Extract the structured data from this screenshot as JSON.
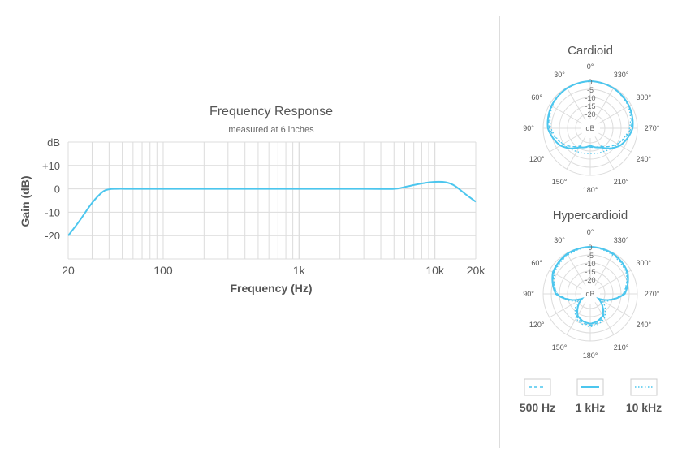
{
  "colors": {
    "accent": "#4cc6ee",
    "grid": "#dcdcdc",
    "text": "#555555"
  },
  "chart_data": [
    {
      "type": "line",
      "title": "Frequency Response",
      "subtitle": "measured at 6 inches",
      "xlabel": "Frequency (Hz)",
      "ylabel": "Gain (dB)",
      "x_scale": "log",
      "xlim": [
        20,
        20000
      ],
      "ylim": [
        -30,
        20
      ],
      "x_tick_labels": [
        "20",
        "100",
        "1k",
        "10k",
        "20k"
      ],
      "x_tick_values": [
        20,
        100,
        1000,
        10000,
        20000
      ],
      "y_tick_labels": [
        "dB",
        "+10",
        "0",
        "-10",
        "-20"
      ],
      "y_tick_values": [
        20,
        10,
        0,
        -10,
        -20
      ],
      "grid": true,
      "series": [
        {
          "x": [
            20,
            24,
            30,
            36,
            40,
            45,
            60,
            100,
            500,
            1000,
            3000,
            5000,
            6000,
            8000,
            10000,
            12000,
            14000,
            17000,
            20000
          ],
          "y": [
            -20,
            -14,
            -6,
            -1.2,
            -0.2,
            0,
            0,
            0,
            0,
            0,
            0,
            0,
            0.8,
            2.3,
            3,
            2.8,
            1.3,
            -2.5,
            -5.5
          ]
        }
      ]
    },
    {
      "type": "polar",
      "title": "Cardioid",
      "radial_tick_labels": [
        "0",
        "-5",
        "-10",
        "-15",
        "-20"
      ],
      "radial_unit": "dB",
      "angle_labels": [
        "0°",
        "30°",
        "60°",
        "90°",
        "120°",
        "150°",
        "180°",
        "210°",
        "240°",
        "270°",
        "300°",
        "330°"
      ],
      "series": [
        {
          "name": "500 Hz",
          "angle_deg": [
            0,
            30,
            60,
            90,
            120,
            150,
            180,
            210,
            240,
            270,
            300,
            330
          ],
          "db": [
            0,
            -0.5,
            -1.5,
            -4,
            -10,
            -17,
            -18,
            -17,
            -10,
            -4,
            -1.5,
            -0.5
          ]
        },
        {
          "name": "1 kHz",
          "angle_deg": [
            0,
            30,
            60,
            90,
            120,
            150,
            180,
            210,
            240,
            270,
            300,
            330
          ],
          "db": [
            0,
            -0.5,
            -1.5,
            -3,
            -8,
            -16,
            -19,
            -16,
            -8,
            -3,
            -1.5,
            -0.5
          ]
        },
        {
          "name": "10 kHz",
          "angle_deg": [
            0,
            30,
            60,
            90,
            120,
            150,
            180,
            210,
            240,
            270,
            300,
            330
          ],
          "db": [
            0,
            -0.7,
            -2,
            -5,
            -10,
            -13,
            -14,
            -13,
            -10,
            -5,
            -2,
            -0.7
          ]
        }
      ]
    },
    {
      "type": "polar",
      "title": "Hypercardioid",
      "radial_tick_labels": [
        "0",
        "-5",
        "-10",
        "-15",
        "-20"
      ],
      "radial_unit": "dB",
      "angle_labels": [
        "0°",
        "30°",
        "60°",
        "90°",
        "120°",
        "150°",
        "180°",
        "210°",
        "240°",
        "270°",
        "300°",
        "330°"
      ],
      "series": [
        {
          "name": "500 Hz",
          "angle_deg": [
            0,
            30,
            60,
            90,
            120,
            150,
            165,
            180,
            195,
            210,
            240,
            270,
            300,
            330
          ],
          "db": [
            0,
            -1,
            -3,
            -9,
            -24,
            -13,
            -11,
            -10,
            -11,
            -13,
            -24,
            -9,
            -3,
            -1
          ]
        },
        {
          "name": "1 kHz",
          "angle_deg": [
            0,
            30,
            60,
            90,
            120,
            150,
            165,
            180,
            195,
            210,
            240,
            270,
            300,
            330
          ],
          "db": [
            0,
            -0.5,
            -2.5,
            -8,
            -24,
            -14,
            -12,
            -11,
            -12,
            -14,
            -24,
            -8,
            -2.5,
            -0.5
          ]
        },
        {
          "name": "10 kHz",
          "angle_deg": [
            0,
            30,
            60,
            90,
            120,
            150,
            165,
            180,
            195,
            210,
            240,
            270,
            300,
            330
          ],
          "db": [
            0,
            -1.5,
            -3.5,
            -9,
            -21,
            -12,
            -10,
            -9,
            -10,
            -12,
            -21,
            -9,
            -3.5,
            -1.5
          ]
        }
      ]
    }
  ],
  "legend": [
    {
      "label": "500 Hz",
      "dash": "dashed"
    },
    {
      "label": "1 kHz",
      "dash": "solid"
    },
    {
      "label": "10 kHz",
      "dash": "dotted"
    }
  ]
}
